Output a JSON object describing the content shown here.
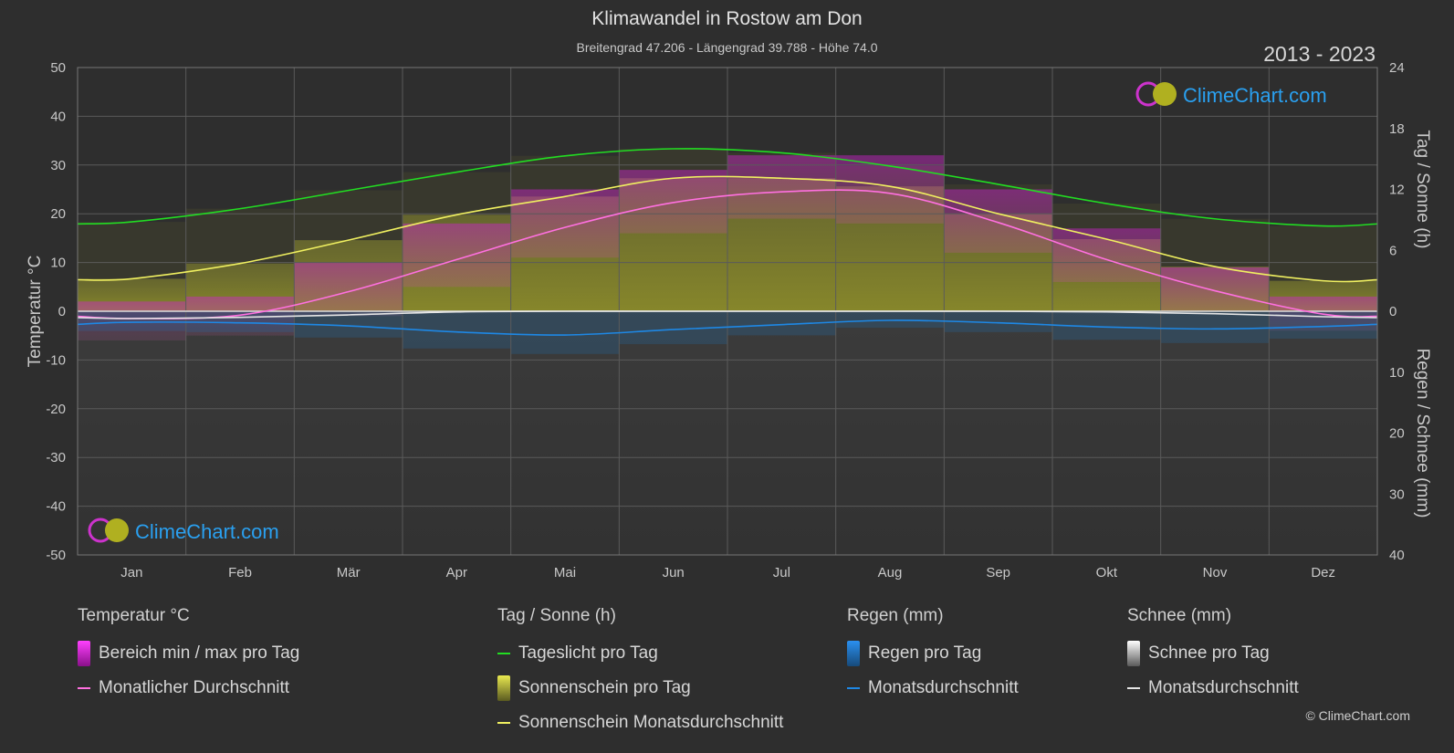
{
  "header": {
    "title": "Klimawandel in Rostow am Don",
    "subtitle": "Breitengrad 47.206 - Längengrad 39.788 - Höhe 74.0",
    "years": "2013 - 2023"
  },
  "brand": {
    "logo_text": "ClimeChart.com",
    "copyright": "© ClimeChart.com"
  },
  "legend": {
    "temp": {
      "header": "Temperatur °C",
      "range": "Bereich min / max pro Tag",
      "avg": "Monatlicher Durchschnitt"
    },
    "sun": {
      "header": "Tag / Sonne (h)",
      "daylight": "Tageslicht pro Tag",
      "sunshine": "Sonnenschein pro Tag",
      "sun_avg": "Sonnenschein Monatsdurchschnitt"
    },
    "rain": {
      "header": "Regen (mm)",
      "per_day": "Regen pro Tag",
      "avg": "Monatsdurchschnitt"
    },
    "snow": {
      "header": "Schnee (mm)",
      "per_day": "Schnee pro Tag",
      "avg": "Monatsdurchschnitt"
    }
  },
  "colors": {
    "daylight": "#22dd22",
    "sunshine_line": "#f0f060",
    "temp_line": "#ff70e0",
    "rain_line": "#1e88e5",
    "snow_line": "#e6e6e6",
    "temp_range": "#e020e0",
    "sunshine_fill": "#a8a830",
    "rain_fill": "#1e6fb0",
    "snow_fill": "#8a8a8a"
  },
  "chart_data": {
    "type": "line",
    "categories": [
      "Jan",
      "Feb",
      "Mär",
      "Apr",
      "Mai",
      "Jun",
      "Jul",
      "Aug",
      "Sep",
      "Okt",
      "Nov",
      "Dez"
    ],
    "y_left": {
      "label": "Temperatur °C",
      "min": -50,
      "max": 50,
      "ticks": [
        50,
        40,
        30,
        20,
        10,
        0,
        -10,
        -20,
        -30,
        -40,
        -50
      ]
    },
    "y_right_top": {
      "label": "Tag / Sonne (h)",
      "min": 0,
      "max": 24,
      "ticks": [
        24,
        18,
        12,
        6,
        0
      ]
    },
    "y_right_bottom": {
      "label": "Regen / Schnee (mm)",
      "min": 0,
      "max": 40,
      "ticks": [
        0,
        10,
        20,
        30,
        40
      ]
    },
    "grid": true,
    "series": [
      {
        "name": "Tageslicht pro Tag",
        "axis": "hours",
        "values": [
          8.8,
          10.1,
          11.9,
          13.7,
          15.3,
          16.0,
          15.6,
          14.3,
          12.5,
          10.6,
          9.1,
          8.4
        ]
      },
      {
        "name": "Sonnenschein Monatsdurchschnitt",
        "axis": "hours",
        "values": [
          3.2,
          4.7,
          7.0,
          9.5,
          11.3,
          13.1,
          13.1,
          12.3,
          9.6,
          7.1,
          4.4,
          3.0
        ]
      },
      {
        "name": "Monatlicher Durchschnitt",
        "axis": "temp",
        "values": [
          -1.5,
          -0.8,
          4.0,
          10.6,
          17.2,
          22.3,
          24.5,
          24.2,
          18.2,
          10.6,
          4.2,
          -0.6
        ]
      },
      {
        "name": "Monatsdurchschnitt (Regen)",
        "axis": "precip",
        "values": [
          1.8,
          1.9,
          2.4,
          3.4,
          3.9,
          3.0,
          2.2,
          1.5,
          1.9,
          2.6,
          2.9,
          2.5
        ]
      },
      {
        "name": "Monatsdurchschnitt (Schnee)",
        "axis": "precip",
        "values": [
          1.2,
          1.0,
          0.6,
          0.1,
          0,
          0,
          0,
          0,
          0,
          0.1,
          0.4,
          0.9
        ]
      }
    ],
    "temp_range_estimate": {
      "max": [
        2,
        3,
        10,
        18,
        25,
        29,
        32,
        32,
        25,
        17,
        9,
        3
      ],
      "min": [
        -6,
        -5,
        -1,
        5,
        11,
        16,
        19,
        18,
        12,
        6,
        0,
        -4
      ]
    }
  }
}
